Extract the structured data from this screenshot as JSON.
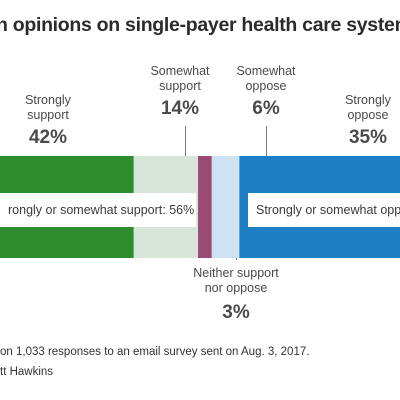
{
  "chart_data": {
    "type": "bar",
    "title": "n opinions on single-payer health care system",
    "categories": [
      "Strongly support",
      "Somewhat support",
      "Neither support nor oppose",
      "Somewhat oppose",
      "Strongly oppose"
    ],
    "values": [
      42,
      14,
      3,
      6,
      35
    ],
    "value_labels": [
      "42%",
      "14%",
      "3%",
      "6%",
      "35%"
    ],
    "colors": [
      "#2e8b2e",
      "#d8e6da",
      "#9b4a73",
      "#cfe2f3",
      "#1f7fc4"
    ],
    "group_labels": {
      "support": "rongly or somewhat support: 56%",
      "oppose": "Strongly or somewhat oppo"
    },
    "label_lines": {
      "strongly_support": [
        "Strongly",
        "support"
      ],
      "somewhat_support": [
        "Somewhat",
        "support"
      ],
      "neither": [
        "Neither support",
        "nor oppose"
      ],
      "somewhat_oppose": [
        "Somewhat",
        "oppose"
      ],
      "strongly_oppose": [
        "Strongly",
        "oppose"
      ]
    }
  },
  "footnotes": {
    "line1": "on 1,033 responses to an email survey sent on Aug. 3, 2017.",
    "line2": "tt Hawkins"
  }
}
